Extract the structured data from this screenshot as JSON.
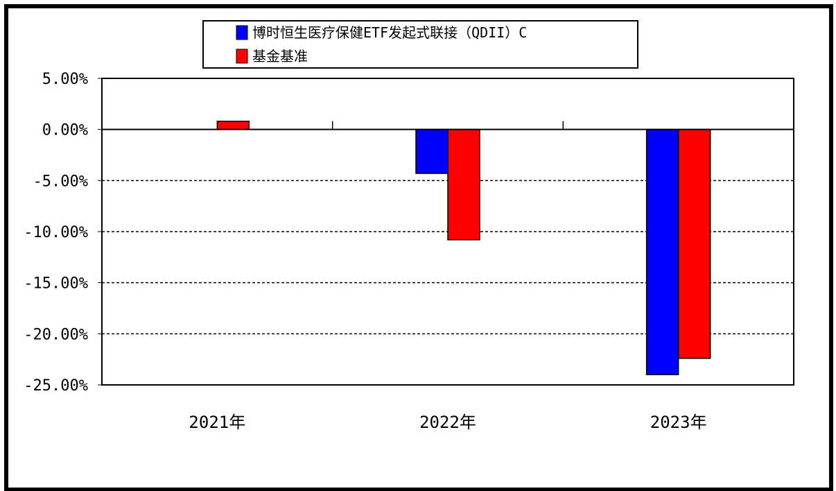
{
  "chart_data": {
    "type": "bar",
    "categories": [
      "2021年",
      "2022年",
      "2023年"
    ],
    "series": [
      {
        "name": "博时恒生医疗保健ETF发起式联接（QDII）C",
        "color": "#0000ff",
        "values": [
          null,
          -4.3,
          -24.0
        ]
      },
      {
        "name": "基金基准",
        "color": "#ff0000",
        "values": [
          0.8,
          -10.8,
          -22.4
        ]
      }
    ],
    "yticks": [
      "5.00%",
      "0.00%",
      "-5.00%",
      "-10.00%",
      "-15.00%",
      "-20.00%",
      "-25.00%"
    ],
    "ylim": [
      -25,
      5
    ],
    "grid": "dashed horizontal lines at negative ticks",
    "legend_position": "top"
  }
}
